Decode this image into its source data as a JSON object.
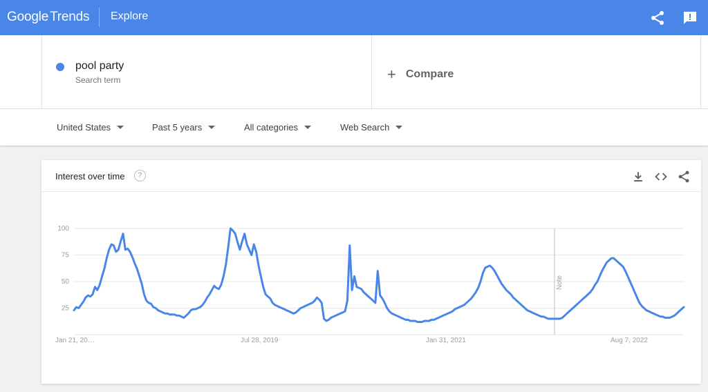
{
  "header": {
    "logo_google": "Google",
    "logo_trends": "Trends",
    "section": "Explore",
    "share_icon": "share-icon",
    "feedback_icon": "feedback-icon"
  },
  "search": {
    "term": "pool party",
    "term_type": "Search term",
    "term_color": "#4a86e8",
    "compare_label": "Compare"
  },
  "filters": {
    "region": "United States",
    "period": "Past 5 years",
    "category": "All categories",
    "property": "Web Search"
  },
  "card": {
    "title": "Interest over time",
    "help_icon": "help-icon",
    "actions": [
      "download-icon",
      "embed-icon",
      "share-icon"
    ]
  },
  "chart_data": {
    "type": "line",
    "series": [
      {
        "name": "pool party",
        "color": "#4a86e8",
        "values": [
          23,
          26,
          25,
          28,
          31,
          35,
          37,
          36,
          38,
          45,
          42,
          47,
          55,
          62,
          72,
          80,
          85,
          84,
          78,
          80,
          88,
          95,
          80,
          81,
          78,
          73,
          67,
          62,
          55,
          48,
          38,
          32,
          30,
          29,
          26,
          25,
          23,
          22,
          21,
          20,
          20,
          19,
          19,
          19,
          18,
          18,
          17,
          16,
          18,
          20,
          23,
          24,
          24,
          25,
          26,
          28,
          31,
          35,
          38,
          42,
          46,
          44,
          43,
          47,
          55,
          66,
          82,
          100,
          98,
          95,
          87,
          80,
          88,
          95,
          85,
          80,
          75,
          85,
          78,
          65,
          55,
          45,
          38,
          36,
          34,
          30,
          28,
          27,
          26,
          25,
          24,
          23,
          22,
          21,
          20,
          21,
          23,
          25,
          26,
          27,
          28,
          29,
          30,
          32,
          35,
          33,
          30,
          15,
          13,
          14,
          16,
          17,
          18,
          19,
          20,
          21,
          22,
          32,
          84,
          42,
          55,
          45,
          44,
          43,
          40,
          38,
          36,
          34,
          32,
          30,
          60,
          37,
          34,
          30,
          25,
          22,
          20,
          19,
          18,
          17,
          16,
          15,
          14,
          14,
          13,
          13,
          13,
          12,
          12,
          12,
          13,
          13,
          13,
          14,
          14,
          15,
          16,
          17,
          18,
          19,
          20,
          21,
          22,
          24,
          25,
          26,
          27,
          28,
          30,
          32,
          34,
          37,
          40,
          44,
          50,
          58,
          63,
          64,
          65,
          63,
          60,
          56,
          52,
          48,
          45,
          42,
          40,
          38,
          35,
          33,
          31,
          29,
          27,
          25,
          23,
          22,
          21,
          20,
          19,
          18,
          17,
          17,
          16,
          15,
          15,
          15,
          15,
          15,
          15,
          16,
          18,
          20,
          22,
          24,
          26,
          28,
          30,
          32,
          34,
          36,
          38,
          40,
          43,
          47,
          50,
          55,
          60,
          64,
          68,
          70,
          72,
          72,
          70,
          68,
          66,
          64,
          60,
          55,
          50,
          45,
          40,
          35,
          30,
          27,
          25,
          23,
          22,
          21,
          20,
          19,
          18,
          17,
          17,
          16,
          16,
          16,
          17,
          18,
          20,
          22,
          24,
          26
        ]
      }
    ],
    "x_tick_labels": [
      "Jan 21, 20…",
      "Jul 28, 2019",
      "Jan 31, 2021",
      "Aug 7, 2022"
    ],
    "y_ticks": [
      25,
      50,
      75,
      100
    ],
    "ylim": [
      0,
      100
    ],
    "note_label": "Note",
    "grid": true,
    "legend": "none"
  }
}
